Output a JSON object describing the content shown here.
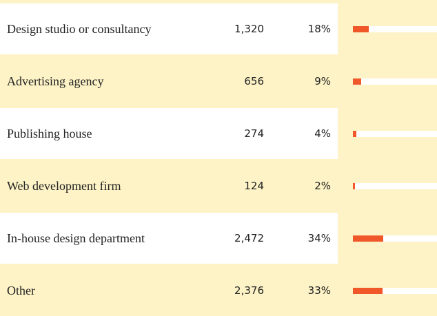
{
  "table": {
    "rows": [
      {
        "label": "Design studio or consultancy",
        "count": "1,320",
        "percent": "18%"
      },
      {
        "label": "Advertising agency",
        "count": "656",
        "percent": "9%"
      },
      {
        "label": "Publishing house",
        "count": "274",
        "percent": "4%"
      },
      {
        "label": "Web development firm",
        "count": "124",
        "percent": "2%"
      },
      {
        "label": "In-house design department",
        "count": "2,472",
        "percent": "34%"
      },
      {
        "label": "Other",
        "count": "2,376",
        "percent": "33%"
      }
    ]
  }
}
